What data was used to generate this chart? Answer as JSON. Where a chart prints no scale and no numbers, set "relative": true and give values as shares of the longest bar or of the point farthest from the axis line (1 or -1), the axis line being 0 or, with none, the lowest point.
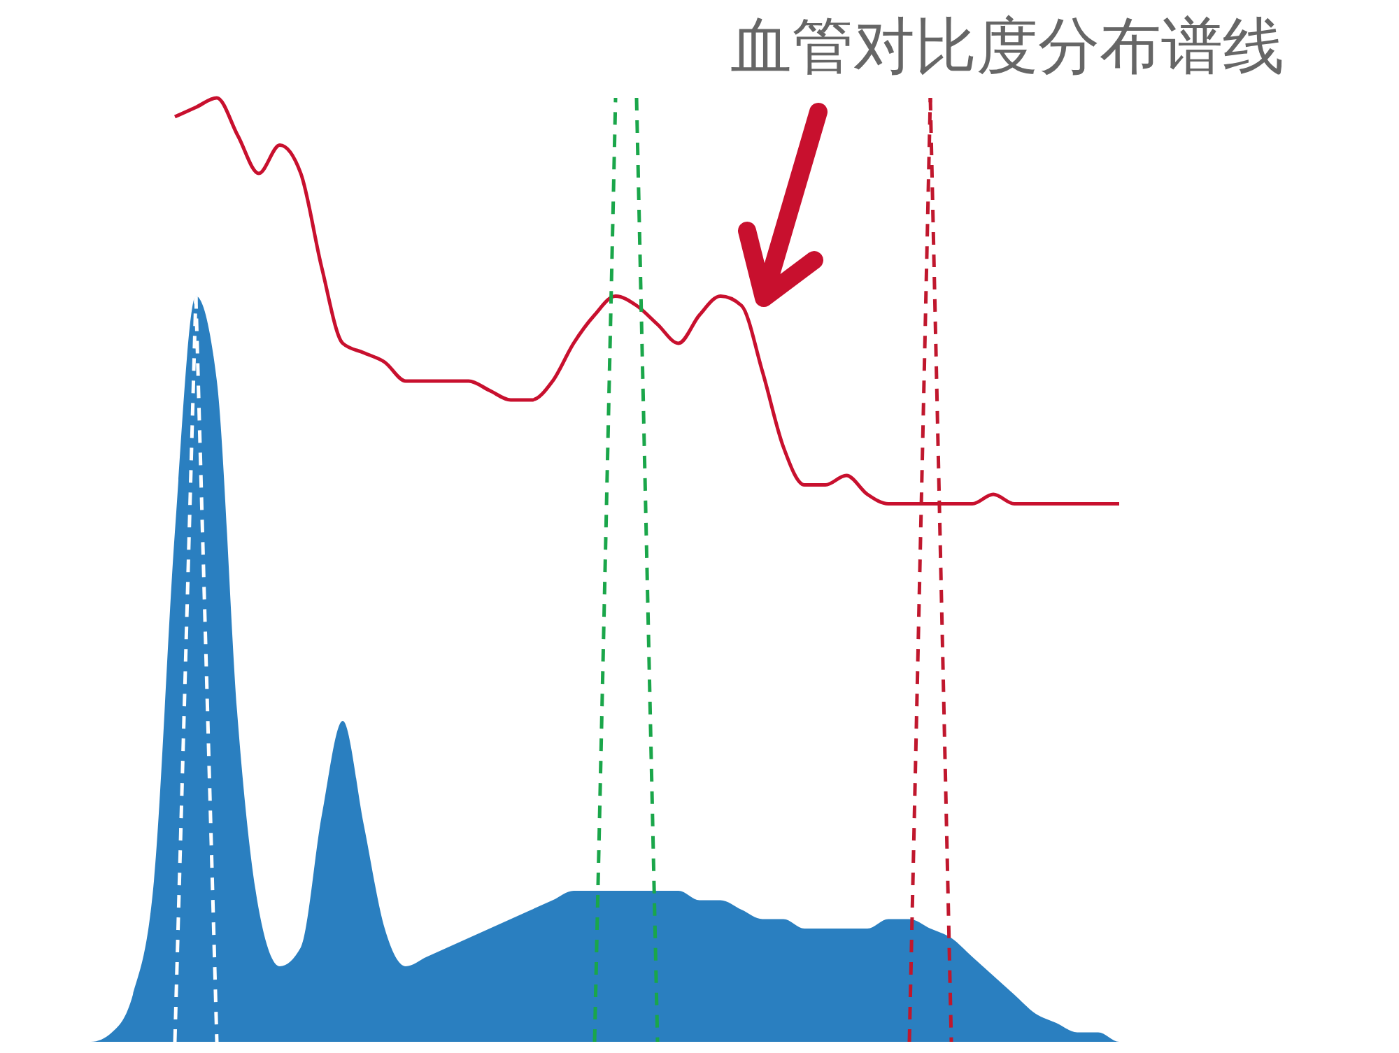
{
  "chart_data": {
    "type": "area",
    "relative": true,
    "annotations": [
      "血管对比度分布谱线"
    ],
    "categories": [
      null,
      null,
      null,
      null,
      null,
      null,
      null,
      null,
      null,
      null,
      null,
      null,
      null,
      null,
      null,
      null,
      null,
      null,
      null,
      null,
      null,
      null,
      null,
      null,
      null,
      null,
      null,
      null,
      null,
      null,
      null,
      null,
      null,
      null,
      null,
      null,
      null,
      null,
      null,
      null,
      null,
      null,
      null,
      null,
      null,
      null,
      null,
      null,
      null,
      null,
      null,
      null,
      null,
      null,
      null,
      null,
      null,
      null,
      null,
      null,
      null,
      null,
      null,
      null,
      null,
      null,
      null
    ],
    "series": [
      {
        "color": "#2a7fc0",
        "values": [
          0,
          0,
          0,
          0,
          0.0,
          0.01,
          0.05,
          0.17,
          0.54,
          0.79,
          0.7,
          0.34,
          0.14,
          0.08,
          0.1,
          0.24,
          0.34,
          0.23,
          0.12,
          0.08,
          0.09,
          0.1,
          0.11,
          0.12,
          0.13,
          0.14,
          0.15,
          0.16,
          0.16,
          0.16,
          0.16,
          0.16,
          0.16,
          0.15,
          0.15,
          0.14,
          0.13,
          0.13,
          0.12,
          0.12,
          0.12,
          0.12,
          0.13,
          0.13,
          0.12,
          0.11,
          0.09,
          0.07,
          0.05,
          0.03,
          0.02,
          0.01,
          0.01,
          0,
          0,
          0,
          0,
          0,
          0,
          0,
          0,
          0,
          0,
          0,
          0,
          0,
          0
        ]
      },
      {
        "type": "line",
        "color": "#c8102e",
        "line_style": "solid",
        "values": [
          null,
          null,
          null,
          null,
          null,
          null,
          null,
          null,
          0.98,
          0.99,
          1.0,
          0.96,
          0.92,
          0.95,
          0.92,
          0.82,
          0.74,
          0.73,
          0.72,
          0.7,
          0.7,
          0.7,
          0.7,
          0.69,
          0.68,
          0.68,
          0.7,
          0.74,
          0.77,
          0.79,
          0.78,
          0.76,
          0.74,
          0.77,
          0.79,
          0.78,
          0.71,
          0.63,
          0.59,
          0.59,
          0.6,
          0.58,
          0.57,
          0.57,
          0.57,
          0.57,
          0.57,
          0.58,
          0.57,
          0.57,
          0.57,
          0.57,
          0.57,
          0.57,
          null,
          null,
          null,
          null,
          null,
          null,
          null,
          null,
          null,
          null,
          null,
          null,
          null
        ]
      },
      {
        "type": "line",
        "color": "#ffffff",
        "line_style": "dashed",
        "values": [
          null,
          null,
          null,
          null,
          null,
          null,
          null,
          null,
          0,
          0.79,
          null,
          null,
          null,
          null,
          null,
          null,
          null,
          null,
          null,
          null,
          null,
          null,
          null,
          null,
          null,
          null,
          null,
          null,
          null,
          null,
          null,
          null,
          null,
          null,
          null,
          null,
          null,
          null,
          null,
          null,
          null,
          null,
          null,
          null,
          null,
          null,
          null,
          null,
          null,
          null,
          null,
          null,
          null,
          null,
          null,
          null,
          null,
          null,
          null,
          null,
          null,
          null,
          null,
          null,
          null,
          null,
          null
        ]
      },
      {
        "type": "line",
        "color": "#ffffff",
        "line_style": "dashed",
        "values": [
          null,
          null,
          null,
          null,
          null,
          null,
          null,
          null,
          null,
          0.79,
          0,
          null,
          null,
          null,
          null,
          null,
          null,
          null,
          null,
          null,
          null,
          null,
          null,
          null,
          null,
          null,
          null,
          null,
          null,
          null,
          null,
          null,
          null,
          null,
          null,
          null,
          null,
          null,
          null,
          null,
          null,
          null,
          null,
          null,
          null,
          null,
          null,
          null,
          null,
          null,
          null,
          null,
          null,
          null,
          null,
          null,
          null,
          null,
          null,
          null,
          null,
          null,
          null,
          null,
          null,
          null,
          null
        ]
      },
      {
        "type": "line",
        "color": "#1aa64a",
        "line_style": "dashed",
        "values": [
          null,
          null,
          null,
          null,
          null,
          null,
          null,
          null,
          null,
          null,
          null,
          null,
          null,
          null,
          null,
          null,
          null,
          null,
          null,
          null,
          null,
          null,
          null,
          null,
          null,
          null,
          null,
          null,
          0,
          1.0,
          null,
          null,
          null,
          null,
          null,
          null,
          null,
          null,
          null,
          null,
          null,
          null,
          null,
          null,
          null,
          null,
          null,
          null,
          null,
          null,
          null,
          null,
          null,
          null,
          null,
          null,
          null,
          null,
          null,
          null,
          null,
          null,
          null,
          null,
          null,
          null,
          null
        ]
      },
      {
        "type": "line",
        "color": "#1aa64a",
        "line_style": "dashed",
        "values": [
          null,
          null,
          null,
          null,
          null,
          null,
          null,
          null,
          null,
          null,
          null,
          null,
          null,
          null,
          null,
          null,
          null,
          null,
          null,
          null,
          null,
          null,
          null,
          null,
          null,
          null,
          null,
          null,
          null,
          null,
          1.0,
          0,
          null,
          null,
          null,
          null,
          null,
          null,
          null,
          null,
          null,
          null,
          null,
          null,
          null,
          null,
          null,
          null,
          null,
          null,
          null,
          null,
          null,
          null,
          null,
          null,
          null,
          null,
          null,
          null,
          null,
          null,
          null,
          null,
          null,
          null,
          null
        ]
      },
      {
        "type": "line",
        "color": "#c0172d",
        "line_style": "dashed",
        "values": [
          null,
          null,
          null,
          null,
          null,
          null,
          null,
          null,
          null,
          null,
          null,
          null,
          null,
          null,
          null,
          null,
          null,
          null,
          null,
          null,
          null,
          null,
          null,
          null,
          null,
          null,
          null,
          null,
          null,
          null,
          null,
          null,
          null,
          null,
          null,
          null,
          null,
          null,
          null,
          null,
          null,
          null,
          null,
          0,
          1.0,
          null,
          null,
          null,
          null,
          null,
          null,
          null,
          null,
          null,
          null,
          null,
          null,
          null,
          null,
          null,
          null,
          null,
          null,
          null,
          null,
          null,
          null
        ]
      },
      {
        "type": "line",
        "color": "#c0172d",
        "line_style": "dashed",
        "values": [
          null,
          null,
          null,
          null,
          null,
          null,
          null,
          null,
          null,
          null,
          null,
          null,
          null,
          null,
          null,
          null,
          null,
          null,
          null,
          null,
          null,
          null,
          null,
          null,
          null,
          null,
          null,
          null,
          null,
          null,
          null,
          null,
          null,
          null,
          null,
          null,
          null,
          null,
          null,
          null,
          null,
          null,
          null,
          null,
          1.0,
          0,
          null,
          null,
          null,
          null,
          null,
          null,
          null,
          null,
          null,
          null,
          null,
          null,
          null,
          null,
          null,
          null,
          null,
          null,
          null,
          null,
          null
        ]
      }
    ]
  }
}
